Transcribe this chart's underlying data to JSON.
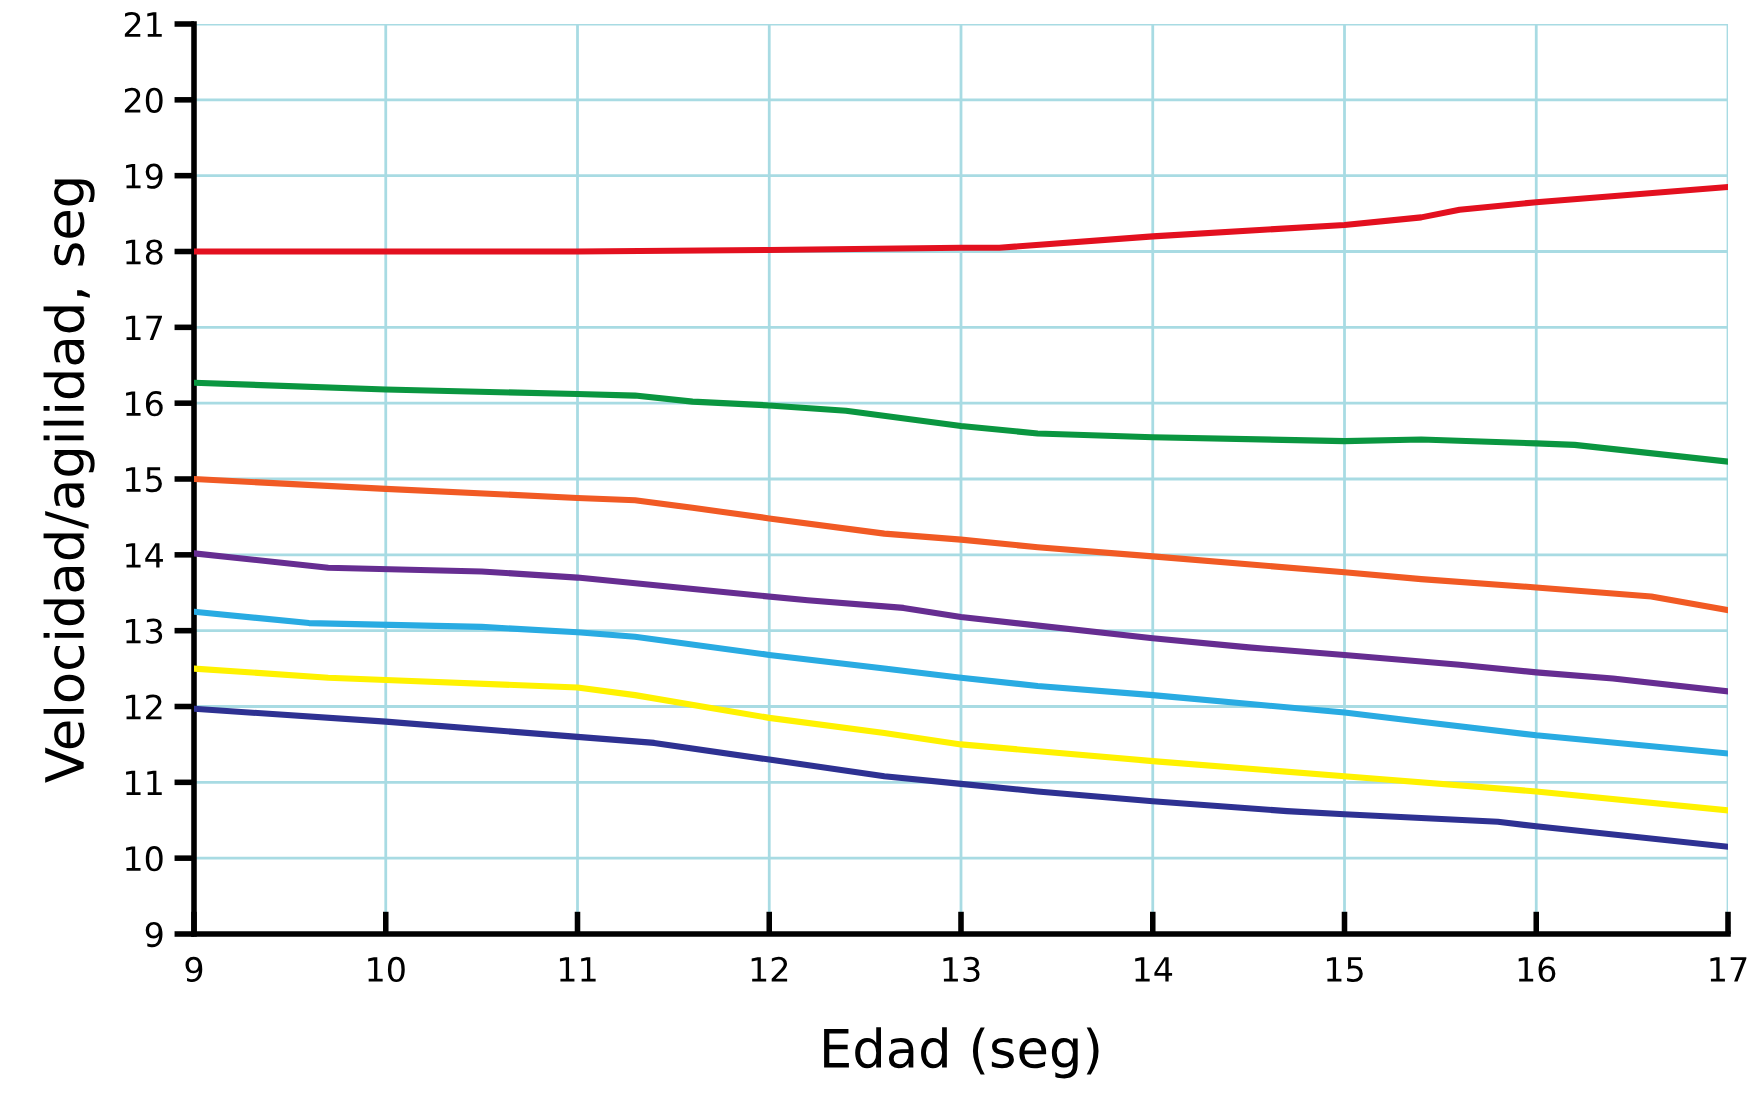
{
  "chart_data": {
    "type": "line",
    "xlabel": "Edad (seg)",
    "ylabel": "Velocidad/agilidad, seg",
    "xlim": [
      9,
      17
    ],
    "xticks": [
      9,
      10,
      11,
      12,
      13,
      14,
      15,
      16,
      17
    ],
    "ylim": [
      9,
      21
    ],
    "yticks": [
      9,
      10,
      11,
      12,
      13,
      14,
      15,
      16,
      17,
      18,
      19,
      20,
      21
    ],
    "grid": true,
    "marker": "none",
    "line_style": "solid",
    "series": [
      {
        "color": "#e3101f",
        "x": [
          9,
          10,
          11,
          12,
          13,
          13.2,
          14,
          15,
          15.4,
          15.6,
          16,
          17
        ],
        "values": [
          18,
          18,
          18,
          18.02,
          18.05,
          18.05,
          18.2,
          18.35,
          18.45,
          18.55,
          18.65,
          18.85
        ]
      },
      {
        "color": "#0a9640",
        "x": [
          9,
          10,
          11,
          11.3,
          11.6,
          12,
          12.4,
          13,
          13.4,
          14,
          15,
          15.4,
          16,
          16.2,
          17
        ],
        "values": [
          16.27,
          16.18,
          16.12,
          16.1,
          16.02,
          15.97,
          15.9,
          15.7,
          15.6,
          15.55,
          15.5,
          15.52,
          15.47,
          15.45,
          15.23
        ]
      },
      {
        "color": "#f15a24",
        "x": [
          9,
          10,
          11,
          11.3,
          11.6,
          12,
          12.6,
          13,
          13.4,
          14,
          15,
          15.4,
          16,
          16.6,
          17
        ],
        "values": [
          15.0,
          14.87,
          14.75,
          14.72,
          14.62,
          14.48,
          14.28,
          14.2,
          14.1,
          13.98,
          13.77,
          13.68,
          13.57,
          13.45,
          13.27
        ]
      },
      {
        "color": "#662d91",
        "x": [
          9,
          9.7,
          10.5,
          11,
          11.8,
          12.2,
          12.7,
          13,
          14,
          14.5,
          15,
          15.6,
          16,
          16.4,
          17
        ],
        "values": [
          14.02,
          13.83,
          13.78,
          13.7,
          13.5,
          13.4,
          13.3,
          13.18,
          12.9,
          12.78,
          12.68,
          12.55,
          12.45,
          12.37,
          12.2
        ]
      },
      {
        "color": "#29abe2",
        "x": [
          9,
          9.6,
          10.5,
          11,
          11.3,
          12,
          12.6,
          13,
          13.4,
          14,
          15,
          15.4,
          16,
          17
        ],
        "values": [
          13.25,
          13.1,
          13.05,
          12.98,
          12.92,
          12.68,
          12.5,
          12.38,
          12.27,
          12.15,
          11.92,
          11.8,
          11.62,
          11.38
        ]
      },
      {
        "color": "#fff200",
        "x": [
          9,
          9.7,
          10,
          11,
          11.3,
          12,
          12.6,
          13,
          14,
          15,
          16,
          17
        ],
        "values": [
          12.5,
          12.38,
          12.35,
          12.25,
          12.15,
          11.85,
          11.65,
          11.5,
          11.28,
          11.08,
          10.88,
          10.63
        ]
      },
      {
        "color": "#2e3192",
        "x": [
          9,
          10,
          11,
          11.4,
          12,
          12.6,
          13,
          13.4,
          14,
          14.7,
          15,
          15.8,
          16,
          17
        ],
        "values": [
          11.97,
          11.8,
          11.6,
          11.52,
          11.3,
          11.08,
          10.98,
          10.88,
          10.75,
          10.62,
          10.58,
          10.48,
          10.42,
          10.15
        ]
      }
    ]
  }
}
